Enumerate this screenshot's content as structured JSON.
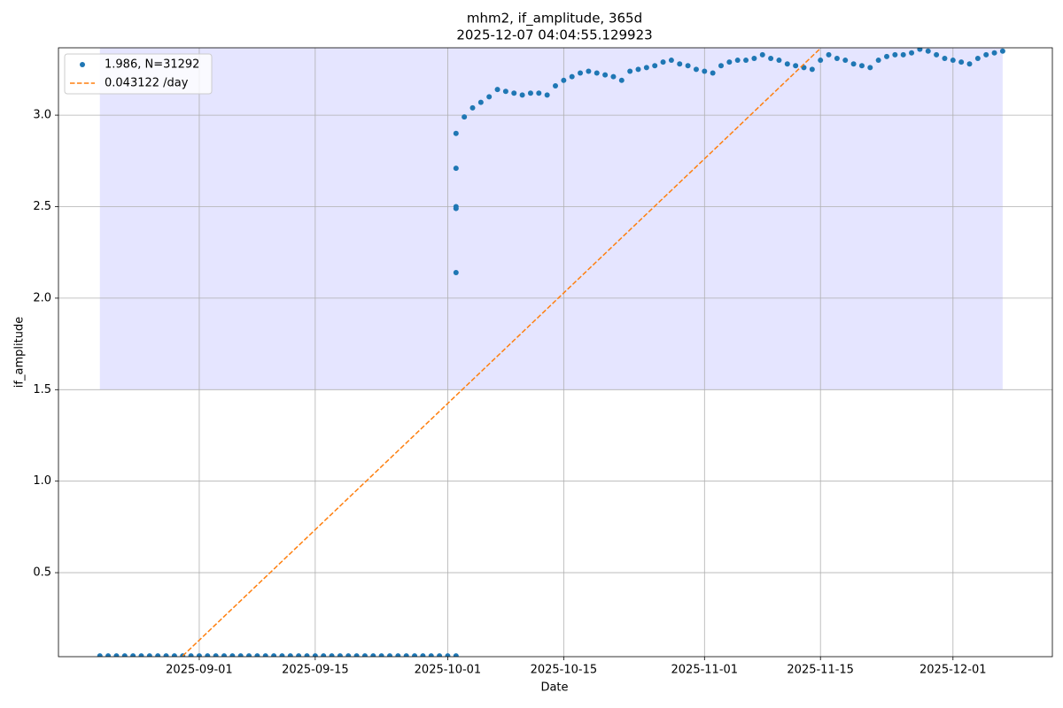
{
  "chart_data": {
    "type": "scatter",
    "title": "mhm2, if_amplitude, 365d",
    "subtitle": "2025-12-07 04:04:55.129923",
    "xlabel": "Date",
    "ylabel": "if_amplitude",
    "xlim": [
      "2025-08-15",
      "2025-12-13"
    ],
    "xticks": [
      "2025-09-01",
      "2025-09-15",
      "2025-10-01",
      "2025-10-15",
      "2025-11-01",
      "2025-11-15",
      "2025-12-01"
    ],
    "ylim": [
      0.041,
      3.368
    ],
    "yticks": [
      0.5,
      {
        "value": 1.0,
        "label": "1.0"
      },
      1.5,
      {
        "value": 2.0,
        "label": "2.0"
      },
      2.5,
      {
        "value": 3.0,
        "label": "3.0"
      }
    ],
    "grid": true,
    "legend": "upper left",
    "band": {
      "x": [
        "2025-08-20",
        "2025-12-07"
      ],
      "y": [
        1.5,
        3.368
      ],
      "color": "#e5e5ff"
    },
    "series": [
      {
        "name": "1.986, N=31292",
        "color": "#1f77b4",
        "type": "scatter",
        "x": [
          "2025-08-20",
          "2025-08-21",
          "2025-08-22",
          "2025-08-23",
          "2025-08-24",
          "2025-08-25",
          "2025-08-26",
          "2025-08-27",
          "2025-08-28",
          "2025-08-29",
          "2025-08-30",
          "2025-08-31",
          "2025-09-01",
          "2025-09-02",
          "2025-09-03",
          "2025-09-04",
          "2025-09-05",
          "2025-09-06",
          "2025-09-07",
          "2025-09-08",
          "2025-09-09",
          "2025-09-10",
          "2025-09-11",
          "2025-09-12",
          "2025-09-13",
          "2025-09-14",
          "2025-09-15",
          "2025-09-16",
          "2025-09-17",
          "2025-09-18",
          "2025-09-19",
          "2025-09-20",
          "2025-09-21",
          "2025-09-22",
          "2025-09-23",
          "2025-09-24",
          "2025-09-25",
          "2025-09-26",
          "2025-09-27",
          "2025-09-28",
          "2025-09-29",
          "2025-09-30",
          "2025-10-01",
          "2025-10-02",
          "2025-10-02",
          "2025-10-02",
          "2025-10-02",
          "2025-10-02",
          "2025-10-02",
          "2025-10-03",
          "2025-10-04",
          "2025-10-05",
          "2025-10-06",
          "2025-10-07",
          "2025-10-08",
          "2025-10-09",
          "2025-10-10",
          "2025-10-11",
          "2025-10-12",
          "2025-10-13",
          "2025-10-14",
          "2025-10-15",
          "2025-10-16",
          "2025-10-17",
          "2025-10-18",
          "2025-10-19",
          "2025-10-20",
          "2025-10-21",
          "2025-10-22",
          "2025-10-23",
          "2025-10-24",
          "2025-10-25",
          "2025-10-26",
          "2025-10-27",
          "2025-10-28",
          "2025-10-29",
          "2025-10-30",
          "2025-10-31",
          "2025-11-01",
          "2025-11-02",
          "2025-11-03",
          "2025-11-04",
          "2025-11-05",
          "2025-11-06",
          "2025-11-07",
          "2025-11-08",
          "2025-11-09",
          "2025-11-10",
          "2025-11-11",
          "2025-11-12",
          "2025-11-13",
          "2025-11-14",
          "2025-11-15",
          "2025-11-16",
          "2025-11-17",
          "2025-11-18",
          "2025-11-19",
          "2025-11-20",
          "2025-11-21",
          "2025-11-22",
          "2025-11-23",
          "2025-11-24",
          "2025-11-25",
          "2025-11-26",
          "2025-11-27",
          "2025-11-28",
          "2025-11-29",
          "2025-11-30",
          "2025-12-01",
          "2025-12-02",
          "2025-12-03",
          "2025-12-04",
          "2025-12-05",
          "2025-12-06",
          "2025-12-07"
        ],
        "values": [
          0.045,
          0.045,
          0.045,
          0.045,
          0.045,
          0.045,
          0.045,
          0.045,
          0.045,
          0.045,
          0.045,
          0.045,
          0.045,
          0.045,
          0.045,
          0.045,
          0.045,
          0.045,
          0.045,
          0.045,
          0.045,
          0.045,
          0.045,
          0.045,
          0.045,
          0.045,
          0.045,
          0.045,
          0.045,
          0.045,
          0.045,
          0.045,
          0.045,
          0.045,
          0.045,
          0.045,
          0.045,
          0.045,
          0.045,
          0.045,
          0.045,
          0.045,
          0.045,
          0.045,
          2.71,
          2.5,
          2.49,
          2.14,
          2.9,
          2.99,
          3.04,
          3.07,
          3.1,
          3.14,
          3.13,
          3.12,
          3.11,
          3.12,
          3.12,
          3.11,
          3.16,
          3.19,
          3.21,
          3.23,
          3.24,
          3.23,
          3.22,
          3.21,
          3.19,
          3.24,
          3.25,
          3.26,
          3.27,
          3.29,
          3.3,
          3.28,
          3.27,
          3.25,
          3.24,
          3.23,
          3.27,
          3.29,
          3.3,
          3.3,
          3.31,
          3.33,
          3.31,
          3.3,
          3.28,
          3.27,
          3.26,
          3.25,
          3.3,
          3.33,
          3.31,
          3.3,
          3.28,
          3.27,
          3.26,
          3.3,
          3.32,
          3.33,
          3.33,
          3.34,
          3.36,
          3.35,
          3.33,
          3.31,
          3.3,
          3.29,
          3.28,
          3.31,
          3.33,
          3.34,
          3.35
        ]
      },
      {
        "name": "0.043122 /day",
        "color": "#ff7f0e",
        "type": "line",
        "dash": true,
        "x": [
          "2025-08-30",
          "2025-11-15"
        ],
        "values": [
          0.045,
          3.365
        ]
      }
    ]
  }
}
